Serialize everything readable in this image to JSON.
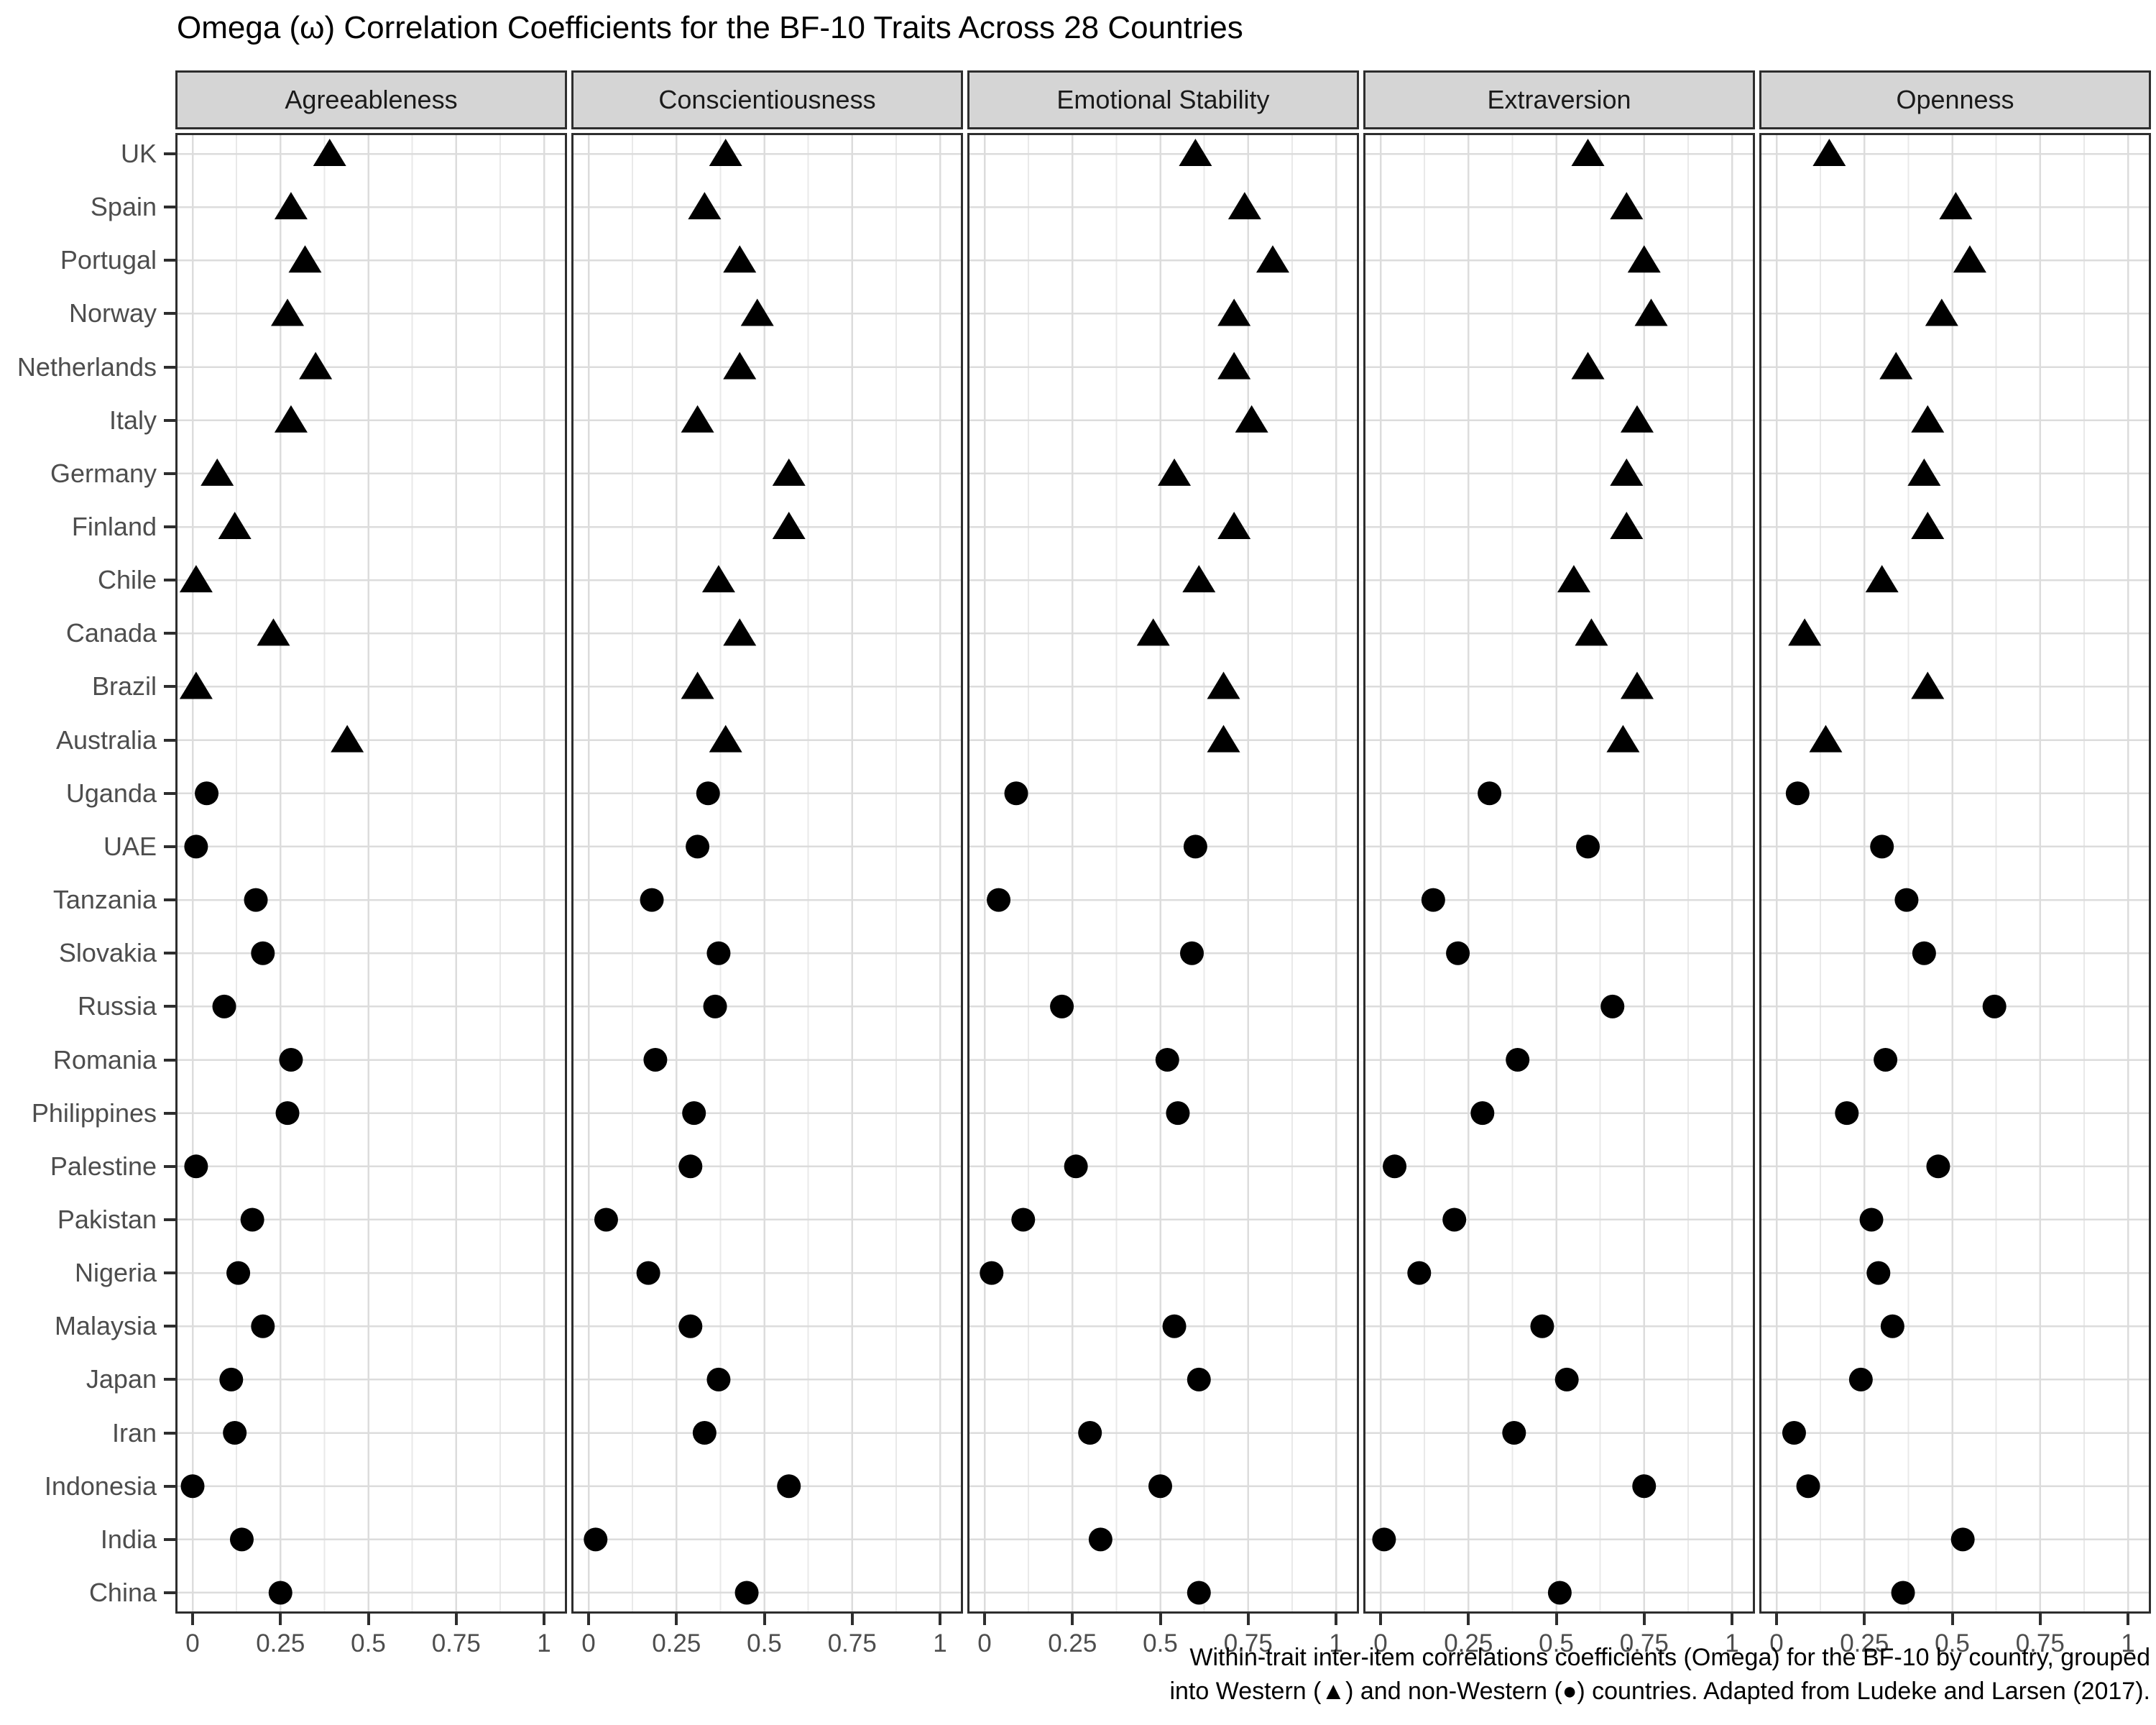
{
  "title": "Omega (ω) Correlation Coefficients for the BF-10 Traits Across 28 Countries",
  "caption": {
    "line1": "Within-trait inter-item correlations coefficients (Omega) for the BF-10 by country, grouped",
    "line2": "into Western (▲) and non-Western (●) countries. Adapted from Ludeke and Larsen (2017)."
  },
  "x_axis": {
    "tick_labels": [
      "0",
      "0.25",
      "0.5",
      "0.75",
      "1"
    ],
    "tick_values": [
      0,
      0.25,
      0.5,
      0.75,
      1
    ],
    "minor_step": 0.125,
    "range": [
      0,
      1
    ]
  },
  "colors": {
    "marker": "#000000",
    "strip_bg": "#d5d5d5",
    "panel_border": "#2e2e2e",
    "grid_major": "#dcdcdc",
    "grid_minor": "#e9e9e9",
    "axis_text": "#4d4d4d",
    "title_text": "#000000"
  },
  "chart_data": {
    "type": "scatter",
    "subtype": "faceted-dot-plot",
    "title": "Omega (ω) Correlation Coefficients for the BF-10 Traits Across 28 Countries",
    "xlabel": "",
    "ylabel": "",
    "xlim": [
      0,
      1
    ],
    "x_ticks": [
      0,
      0.25,
      0.5,
      0.75,
      1
    ],
    "x_minor_step": 0.125,
    "grid": true,
    "legend_position": "none (encoded in caption)",
    "facets": [
      "Agreeableness",
      "Conscientiousness",
      "Emotional Stability",
      "Extraversion",
      "Openness"
    ],
    "categories": [
      "UK",
      "Spain",
      "Portugal",
      "Norway",
      "Netherlands",
      "Italy",
      "Germany",
      "Finland",
      "Chile",
      "Canada",
      "Brazil",
      "Australia",
      "Uganda",
      "UAE",
      "Tanzania",
      "Slovakia",
      "Russia",
      "Romania",
      "Philippines",
      "Palestine",
      "Pakistan",
      "Nigeria",
      "Malaysia",
      "Japan",
      "Iran",
      "Indonesia",
      "India",
      "China"
    ],
    "groups": [
      "western",
      "western",
      "western",
      "western",
      "western",
      "western",
      "western",
      "western",
      "western",
      "western",
      "western",
      "western",
      "non_western",
      "non_western",
      "non_western",
      "non_western",
      "non_western",
      "non_western",
      "non_western",
      "non_western",
      "non_western",
      "non_western",
      "non_western",
      "non_western",
      "non_western",
      "non_western",
      "non_western",
      "non_western"
    ],
    "marker_map": {
      "western": "triangle",
      "non_western": "circle"
    },
    "series": [
      {
        "name": "Agreeableness",
        "values": [
          0.39,
          0.28,
          0.32,
          0.27,
          0.35,
          0.28,
          0.07,
          0.12,
          0.01,
          0.23,
          0.01,
          0.44,
          0.04,
          0.01,
          0.18,
          0.2,
          0.09,
          0.28,
          0.27,
          0.01,
          0.17,
          0.13,
          0.2,
          0.11,
          0.12,
          0.0,
          0.14,
          0.25
        ]
      },
      {
        "name": "Conscientiousness",
        "values": [
          0.39,
          0.33,
          0.43,
          0.48,
          0.43,
          0.31,
          0.57,
          0.57,
          0.37,
          0.43,
          0.31,
          0.39,
          0.34,
          0.31,
          0.18,
          0.37,
          0.36,
          0.19,
          0.3,
          0.29,
          0.05,
          0.17,
          0.29,
          0.37,
          0.33,
          0.57,
          0.02,
          0.45
        ]
      },
      {
        "name": "Emotional Stability",
        "values": [
          0.6,
          0.74,
          0.82,
          0.71,
          0.71,
          0.76,
          0.54,
          0.71,
          0.61,
          0.48,
          0.68,
          0.68,
          0.09,
          0.6,
          0.04,
          0.59,
          0.22,
          0.52,
          0.55,
          0.26,
          0.11,
          0.02,
          0.54,
          0.61,
          0.3,
          0.5,
          0.33,
          0.61
        ]
      },
      {
        "name": "Extraversion",
        "values": [
          0.59,
          0.7,
          0.75,
          0.77,
          0.59,
          0.73,
          0.7,
          0.7,
          0.55,
          0.6,
          0.73,
          0.69,
          0.31,
          0.59,
          0.15,
          0.22,
          0.66,
          0.39,
          0.29,
          0.04,
          0.21,
          0.11,
          0.46,
          0.53,
          0.38,
          0.75,
          0.01,
          0.51
        ]
      },
      {
        "name": "Openness",
        "values": [
          0.15,
          0.51,
          0.55,
          0.47,
          0.34,
          0.43,
          0.42,
          0.43,
          0.3,
          0.08,
          0.43,
          0.14,
          0.06,
          0.3,
          0.37,
          0.42,
          0.62,
          0.31,
          0.2,
          0.46,
          0.27,
          0.29,
          0.33,
          0.24,
          0.05,
          0.09,
          0.53,
          0.36
        ]
      }
    ]
  }
}
